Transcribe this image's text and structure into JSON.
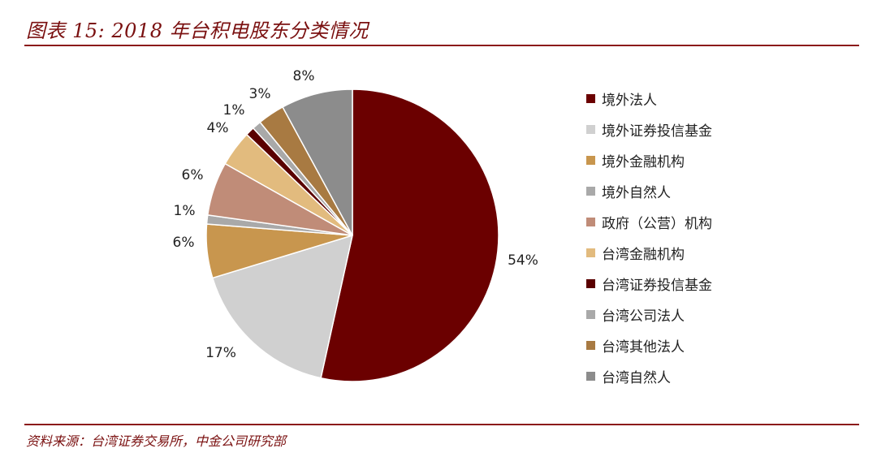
{
  "header": {
    "title": "图表 15: 2018 年台积电股东分类情况"
  },
  "footer": {
    "source": "资料来源：台湾证券交易所，中金公司研究部"
  },
  "chart_data": {
    "type": "pie",
    "title": "图表 15: 2018 年台积电股东分类情况",
    "legend_position": "right",
    "slices": [
      {
        "label": "境外法人",
        "value": 54,
        "display": "54%",
        "color": "#6b0000"
      },
      {
        "label": "境外证券投信基金",
        "value": 17,
        "display": "17%",
        "color": "#d0d0d0"
      },
      {
        "label": "境外金融机构",
        "value": 6,
        "display": "6%",
        "color": "#c8964e"
      },
      {
        "label": "境外自然人",
        "value": 1,
        "display": "1%",
        "color": "#a9a9a9"
      },
      {
        "label": "政府（公营）机构",
        "value": 6,
        "display": "6%",
        "color": "#c08c78"
      },
      {
        "label": "台湾金融机构",
        "value": 4,
        "display": "4%",
        "color": "#e2bb7e"
      },
      {
        "label": "台湾证券投信基金",
        "value": 1,
        "display": "",
        "color": "#5a0000"
      },
      {
        "label": "台湾公司法人",
        "value": 1,
        "display": "1%",
        "color": "#a9a9a9"
      },
      {
        "label": "台湾其他法人",
        "value": 3,
        "display": "3%",
        "color": "#a87a42"
      },
      {
        "label": "台湾自然人",
        "value": 8,
        "display": "8%",
        "color": "#8c8c8c"
      }
    ]
  }
}
